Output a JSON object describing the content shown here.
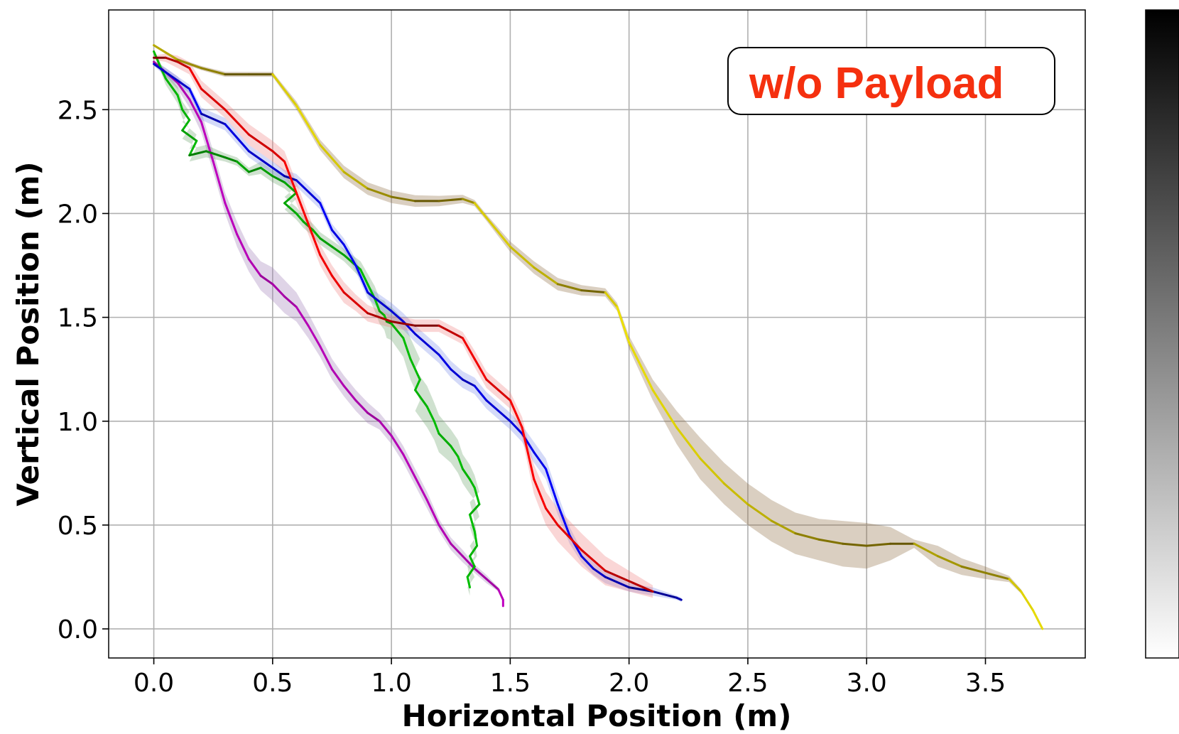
{
  "chart_data": {
    "type": "line",
    "title": "",
    "xlabel": "Horizontal Position (m)",
    "ylabel": "Vertical Position (m)",
    "xlim": [
      -0.19,
      3.92
    ],
    "ylim": [
      -0.14,
      2.98
    ],
    "xticks": [
      "0.0",
      "0.5",
      "1.0",
      "1.5",
      "2.0",
      "2.5",
      "3.0",
      "3.5"
    ],
    "yticks": [
      "0.0",
      "0.5",
      "1.0",
      "1.5",
      "2.0",
      "2.5"
    ],
    "xtick_values": [
      0,
      0.5,
      1.0,
      1.5,
      2.0,
      2.5,
      3.0,
      3.5
    ],
    "ytick_values": [
      0,
      0.5,
      1.0,
      1.5,
      2.0,
      2.5
    ],
    "grid": true,
    "annotation": "w/o Payload",
    "colorbar": {
      "from": "#000000",
      "to": "#ffffff"
    },
    "series": [
      {
        "name": "brown",
        "color": "#f2e600",
        "color_dark": "#1a0a00",
        "band_color": "#8b6a3e",
        "x": [
          0,
          0.1,
          0.2,
          0.3,
          0.4,
          0.5,
          0.6,
          0.7,
          0.8,
          0.9,
          1.0,
          1.1,
          1.2,
          1.3,
          1.35,
          1.4,
          1.5,
          1.6,
          1.7,
          1.8,
          1.9,
          1.95,
          2.0,
          2.1,
          2.2,
          2.3,
          2.4,
          2.5,
          2.6,
          2.7,
          2.8,
          2.9,
          3.0,
          3.1,
          3.2,
          3.3,
          3.4,
          3.5,
          3.6,
          3.65,
          3.7,
          3.74
        ],
        "y": [
          2.81,
          2.74,
          2.7,
          2.67,
          2.67,
          2.67,
          2.52,
          2.33,
          2.2,
          2.12,
          2.08,
          2.06,
          2.06,
          2.07,
          2.05,
          1.98,
          1.84,
          1.74,
          1.66,
          1.63,
          1.62,
          1.55,
          1.38,
          1.15,
          0.97,
          0.82,
          0.7,
          0.6,
          0.52,
          0.46,
          0.43,
          0.41,
          0.4,
          0.41,
          0.41,
          0.35,
          0.3,
          0.27,
          0.24,
          0.18,
          0.09,
          0.0
        ],
        "band": [
          0.005,
          0.008,
          0.01,
          0.012,
          0.012,
          0.012,
          0.02,
          0.025,
          0.03,
          0.03,
          0.03,
          0.028,
          0.025,
          0.02,
          0.015,
          0.015,
          0.025,
          0.03,
          0.03,
          0.025,
          0.02,
          0.02,
          0.03,
          0.05,
          0.08,
          0.1,
          0.1,
          0.1,
          0.1,
          0.1,
          0.1,
          0.11,
          0.11,
          0.08,
          0.02,
          0.05,
          0.04,
          0.03,
          0.015,
          0.01,
          0.005,
          0.0
        ]
      },
      {
        "name": "purple",
        "color": "#c000c0",
        "color_dark": "#2a002a",
        "band_color": "#9a78b5",
        "x": [
          0,
          0.05,
          0.1,
          0.15,
          0.2,
          0.25,
          0.3,
          0.35,
          0.4,
          0.45,
          0.5,
          0.55,
          0.6,
          0.65,
          0.7,
          0.75,
          0.8,
          0.85,
          0.9,
          0.95,
          1.0,
          1.05,
          1.1,
          1.15,
          1.2,
          1.25,
          1.3,
          1.35,
          1.4,
          1.45,
          1.47,
          1.47
        ],
        "y": [
          2.73,
          2.68,
          2.63,
          2.55,
          2.44,
          2.25,
          2.05,
          1.9,
          1.78,
          1.7,
          1.66,
          1.6,
          1.55,
          1.46,
          1.36,
          1.25,
          1.17,
          1.1,
          1.04,
          1.0,
          0.93,
          0.84,
          0.73,
          0.62,
          0.5,
          0.41,
          0.35,
          0.29,
          0.24,
          0.19,
          0.14,
          0.11
        ],
        "band": [
          0.01,
          0.02,
          0.03,
          0.04,
          0.05,
          0.05,
          0.05,
          0.06,
          0.06,
          0.07,
          0.08,
          0.08,
          0.07,
          0.06,
          0.05,
          0.05,
          0.05,
          0.05,
          0.05,
          0.04,
          0.04,
          0.04,
          0.04,
          0.04,
          0.03,
          0.03,
          0.03,
          0.02,
          0.02,
          0.01,
          0.01,
          0.01
        ]
      },
      {
        "name": "green",
        "color": "#00c000",
        "color_dark": "#003300",
        "band_color": "#6aa36a",
        "x": [
          0,
          0.03,
          0.05,
          0.1,
          0.12,
          0.15,
          0.12,
          0.18,
          0.15,
          0.22,
          0.3,
          0.35,
          0.4,
          0.45,
          0.5,
          0.55,
          0.6,
          0.55,
          0.6,
          0.63,
          0.67,
          0.7,
          0.75,
          0.8,
          0.87,
          0.9,
          0.93,
          0.95,
          0.97,
          0.98,
          1.0,
          1.05,
          1.08,
          1.12,
          1.1,
          1.15,
          1.18,
          1.2,
          1.25,
          1.28,
          1.3,
          1.33,
          1.35,
          1.37,
          1.33,
          1.35,
          1.36,
          1.33,
          1.35,
          1.32,
          1.33
        ],
        "y": [
          2.78,
          2.7,
          2.65,
          2.57,
          2.5,
          2.45,
          2.4,
          2.35,
          2.28,
          2.3,
          2.27,
          2.25,
          2.2,
          2.22,
          2.18,
          2.15,
          2.1,
          2.05,
          2.0,
          1.96,
          1.92,
          1.88,
          1.84,
          1.8,
          1.73,
          1.66,
          1.59,
          1.53,
          1.51,
          1.48,
          1.47,
          1.4,
          1.3,
          1.2,
          1.15,
          1.07,
          1.0,
          0.94,
          0.88,
          0.83,
          0.77,
          0.72,
          0.68,
          0.6,
          0.55,
          0.47,
          0.4,
          0.35,
          0.3,
          0.25,
          0.2
        ],
        "band": [
          0.01,
          0.02,
          0.03,
          0.04,
          0.04,
          0.04,
          0.04,
          0.03,
          0.03,
          0.03,
          0.02,
          0.02,
          0.02,
          0.03,
          0.03,
          0.03,
          0.03,
          0.03,
          0.03,
          0.03,
          0.03,
          0.03,
          0.03,
          0.03,
          0.04,
          0.05,
          0.06,
          0.06,
          0.07,
          0.08,
          0.08,
          0.09,
          0.1,
          0.1,
          0.1,
          0.1,
          0.09,
          0.09,
          0.08,
          0.08,
          0.07,
          0.07,
          0.06,
          0.06,
          0.06,
          0.05,
          0.05,
          0.05,
          0.05,
          0.05,
          0.04
        ]
      },
      {
        "name": "blue",
        "color": "#0000ff",
        "color_dark": "#00001a",
        "band_color": "#7a8ce8",
        "x": [
          0,
          0.05,
          0.1,
          0.15,
          0.2,
          0.3,
          0.4,
          0.5,
          0.55,
          0.6,
          0.7,
          0.75,
          0.8,
          0.85,
          0.9,
          1.0,
          1.05,
          1.1,
          1.2,
          1.25,
          1.3,
          1.35,
          1.4,
          1.5,
          1.55,
          1.6,
          1.65,
          1.7,
          1.75,
          1.8,
          1.85,
          1.9,
          2.0,
          2.1,
          2.2,
          2.22
        ],
        "y": [
          2.72,
          2.68,
          2.64,
          2.6,
          2.48,
          2.43,
          2.3,
          2.22,
          2.18,
          2.16,
          2.05,
          1.92,
          1.85,
          1.75,
          1.62,
          1.53,
          1.48,
          1.42,
          1.32,
          1.25,
          1.2,
          1.17,
          1.1,
          1.0,
          0.94,
          0.85,
          0.77,
          0.6,
          0.45,
          0.35,
          0.29,
          0.25,
          0.2,
          0.18,
          0.15,
          0.14
        ],
        "band": [
          0.01,
          0.02,
          0.02,
          0.02,
          0.03,
          0.03,
          0.03,
          0.03,
          0.03,
          0.03,
          0.03,
          0.03,
          0.03,
          0.03,
          0.03,
          0.04,
          0.04,
          0.04,
          0.04,
          0.04,
          0.04,
          0.04,
          0.04,
          0.04,
          0.04,
          0.05,
          0.05,
          0.05,
          0.04,
          0.03,
          0.03,
          0.03,
          0.02,
          0.02,
          0.01,
          0.01
        ]
      },
      {
        "name": "red",
        "color": "#ff0000",
        "color_dark": "#3a0000",
        "band_color": "#f08080",
        "x": [
          0,
          0.05,
          0.1,
          0.15,
          0.2,
          0.3,
          0.4,
          0.5,
          0.55,
          0.6,
          0.65,
          0.7,
          0.75,
          0.8,
          0.85,
          0.9,
          1.0,
          1.1,
          1.2,
          1.3,
          1.35,
          1.4,
          1.45,
          1.5,
          1.55,
          1.6,
          1.65,
          1.7,
          1.8,
          1.9,
          2.0,
          2.1
        ],
        "y": [
          2.75,
          2.75,
          2.73,
          2.7,
          2.6,
          2.5,
          2.38,
          2.3,
          2.25,
          2.1,
          1.95,
          1.8,
          1.7,
          1.62,
          1.57,
          1.52,
          1.48,
          1.46,
          1.46,
          1.4,
          1.3,
          1.2,
          1.15,
          1.1,
          0.97,
          0.72,
          0.58,
          0.5,
          0.38,
          0.28,
          0.23,
          0.18
        ],
        "band": [
          0.01,
          0.02,
          0.03,
          0.03,
          0.04,
          0.04,
          0.05,
          0.05,
          0.05,
          0.05,
          0.05,
          0.05,
          0.05,
          0.05,
          0.04,
          0.04,
          0.03,
          0.03,
          0.03,
          0.03,
          0.04,
          0.04,
          0.04,
          0.04,
          0.05,
          0.07,
          0.08,
          0.08,
          0.08,
          0.07,
          0.05,
          0.03
        ]
      }
    ]
  }
}
